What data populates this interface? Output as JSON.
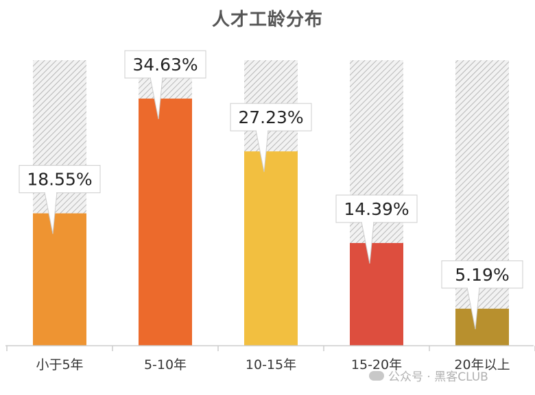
{
  "chart_data": {
    "type": "bar",
    "title": "人才工龄分布",
    "categories": [
      "小于5年",
      "5-10年",
      "10-15年",
      "15-20年",
      "20年以上"
    ],
    "values": [
      18.55,
      34.63,
      27.23,
      14.39,
      5.19
    ],
    "value_labels": [
      "18.55%",
      "34.63%",
      "27.23%",
      "14.39%",
      "5.19%"
    ],
    "colors": [
      "#EE9432",
      "#EC6A2C",
      "#F2BF40",
      "#DD4E3E",
      "#B8902E"
    ],
    "background_bar": "hatched gray",
    "ylim": [
      0,
      40
    ],
    "xlabel": "",
    "ylabel": "",
    "grid": false,
    "legend": "none"
  },
  "watermark": {
    "text": "公众号 · 黑客CLUB",
    "icon": "wechat-icon"
  }
}
